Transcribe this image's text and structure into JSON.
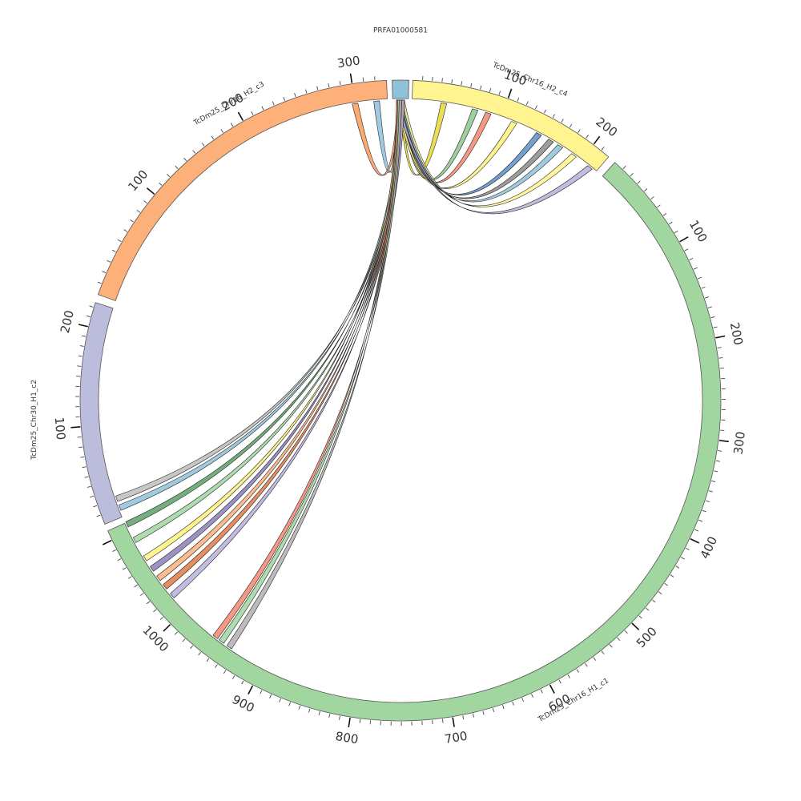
{
  "diagram": {
    "type": "circos",
    "segments": [
      {
        "id": "PRFA01000581",
        "name": "PRFA01000581",
        "color": "#8fc1d9",
        "length": 4,
        "tick_labels": []
      },
      {
        "id": "c4",
        "name": "TcDm25_Chr16_H2_c4",
        "color": "#fff48f",
        "length": 220,
        "tick_labels": [
          "100",
          "200"
        ]
      },
      {
        "id": "c1",
        "name": "TcDm25_Chr16_H1_c1",
        "color": "#a1d6a1",
        "length": 1110,
        "tick_labels": [
          "100",
          "200",
          "300",
          "400",
          "500",
          "600",
          "700",
          "800",
          "900",
          "1000"
        ]
      },
      {
        "id": "c2",
        "name": "TcDm25_Chr30_H1_c2",
        "color": "#bcbcdc",
        "length": 225,
        "tick_labels": [
          "100",
          "200"
        ]
      },
      {
        "id": "c3",
        "name": "TcDm25_Chr16_H2_c3",
        "color": "#fdb07a",
        "length": 330,
        "tick_labels": [
          "100",
          "200",
          "300"
        ]
      }
    ],
    "links": [
      {
        "target": "c3",
        "pos": 320,
        "color": "#8fc1d9"
      },
      {
        "target": "c3",
        "pos": 300,
        "color": "#fd9a5c"
      },
      {
        "target": "c4",
        "pos": 35,
        "color": "#e8d83a"
      },
      {
        "target": "c4",
        "pos": 70,
        "color": "#8cc88c"
      },
      {
        "target": "c4",
        "pos": 85,
        "color": "#f4876e"
      },
      {
        "target": "c4",
        "pos": 115,
        "color": "#fff37a"
      },
      {
        "target": "c4",
        "pos": 145,
        "color": "#5b8fc8"
      },
      {
        "target": "c4",
        "pos": 160,
        "color": "#8c8c8c"
      },
      {
        "target": "c4",
        "pos": 172,
        "color": "#8fc1d9"
      },
      {
        "target": "c4",
        "pos": 190,
        "color": "#fff48f"
      },
      {
        "target": "c4",
        "pos": 212,
        "color": "#b8b0dc"
      },
      {
        "target": "c2",
        "pos": 20,
        "color": "#bdbdbd"
      },
      {
        "target": "c2",
        "pos": 10,
        "color": "#8fc1d9"
      },
      {
        "target": "c1",
        "pos": 1108,
        "color": "#5aa065"
      },
      {
        "target": "c1",
        "pos": 1090,
        "color": "#a1d6a1"
      },
      {
        "target": "c1",
        "pos": 1068,
        "color": "#fff37a"
      },
      {
        "target": "c1",
        "pos": 1055,
        "color": "#8c7fbc"
      },
      {
        "target": "c1",
        "pos": 1043,
        "color": "#fdb07a"
      },
      {
        "target": "c1",
        "pos": 1032,
        "color": "#e07a45"
      },
      {
        "target": "c1",
        "pos": 1020,
        "color": "#b8b0dc"
      },
      {
        "target": "c1",
        "pos": 958,
        "color": "#f4876e"
      },
      {
        "target": "c1",
        "pos": 950,
        "color": "#a1d6a1"
      },
      {
        "target": "c1",
        "pos": 940,
        "color": "#b0b0b0"
      }
    ]
  }
}
